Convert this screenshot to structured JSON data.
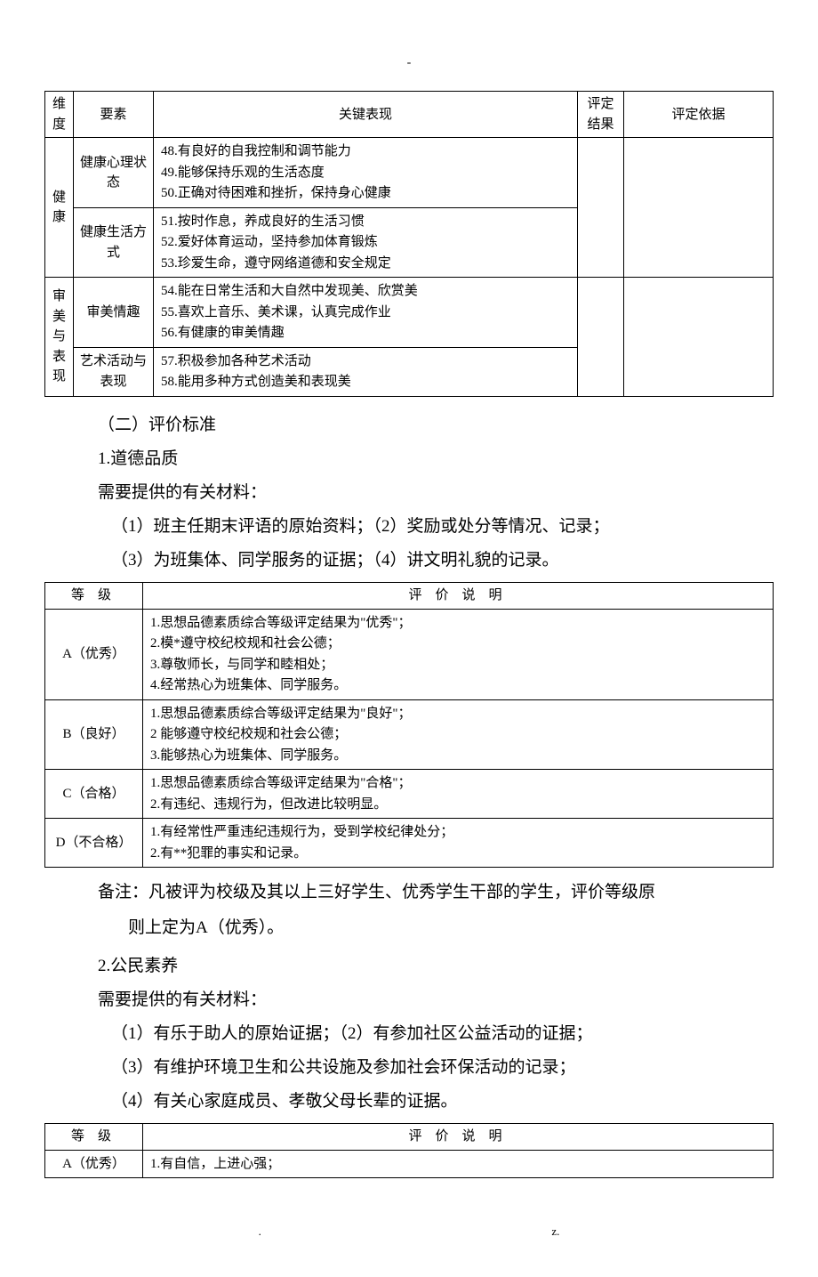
{
  "page_marker_top": "-",
  "footer": {
    "left": ".",
    "right": "z."
  },
  "table1": {
    "headers": {
      "dim": "维度",
      "elem": "要素",
      "perf": "关键表现",
      "res": "评定结果",
      "basis": "评定依据"
    },
    "rows": [
      {
        "dim": "健康",
        "elem": "健康心理状态",
        "perf": [
          "48.有良好的自我控制和调节能力",
          "49.能够保持乐观的生活态度",
          "50.正确对待困难和挫折，保持身心健康"
        ]
      },
      {
        "elem": "健康生活方式",
        "perf": [
          "51.按时作息，养成良好的生活习惯",
          "52.爱好体育运动，坚持参加体育锻炼",
          "53.珍爱生命，遵守网络道德和安全规定"
        ]
      },
      {
        "dim": "审美与表现",
        "elem": "审美情趣",
        "perf": [
          "54.能在日常生活和大自然中发现美、欣赏美",
          "55.喜欢上音乐、美术课，认真完成作业",
          "56.有健康的审美情趣"
        ]
      },
      {
        "elem": "艺术活动与表现",
        "perf": [
          "57.积极参加各种艺术活动",
          "58.能用多种方式创造美和表现美"
        ]
      }
    ]
  },
  "section2": {
    "heading": "（二）评价标准",
    "item1_title": "1.道德品质",
    "materials_label": "需要提供的有关材料：",
    "materials_line1": "（1）班主任期末评语的原始资料；（2）奖励或处分等情况、记录；",
    "materials_line2": "（3）为班集体、同学服务的证据；（4）讲文明礼貌的记录。"
  },
  "table2": {
    "headers": {
      "grade": "等级",
      "desc": "评价说明"
    },
    "rows": [
      {
        "grade": "A（优秀）",
        "desc": [
          "1.思想品德素质综合等级评定结果为\"优秀\"；",
          "2.模*遵守校纪校规和社会公德；",
          "3.尊敬师长，与同学和睦相处；",
          "4.经常热心为班集体、同学服务。"
        ]
      },
      {
        "grade": "B（良好）",
        "desc": [
          "1.思想品德素质综合等级评定结果为\"良好\"；",
          "2 能够遵守校纪校规和社会公德；",
          "3.能够热心为班集体、同学服务。"
        ]
      },
      {
        "grade": "C（合格）",
        "desc": [
          "1.思想品德素质综合等级评定结果为\"合格\"；",
          "2.有违纪、违规行为，但改进比较明显。"
        ]
      },
      {
        "grade": "D（不合格）",
        "desc": [
          "1.有经常性严重违纪违规行为，受到学校纪律处分；",
          "2.有**犯罪的事实和记录。"
        ]
      }
    ]
  },
  "note": {
    "line1": "备注：凡被评为校级及其以上三好学生、优秀学生干部的学生，评价等级原",
    "line2": "则上定为A（优秀）。"
  },
  "section3": {
    "item_title": "2.公民素养",
    "materials_label": "需要提供的有关材料：",
    "line1": "（1）有乐于助人的原始证据；（2）有参加社区公益活动的证据；",
    "line2": "（3）有维护环境卫生和公共设施及参加社会环保活动的记录；",
    "line3": "（4）有关心家庭成员、孝敬父母长辈的证据。"
  },
  "table3": {
    "headers": {
      "grade": "等级",
      "desc": "评价说明"
    },
    "rows": [
      {
        "grade": "A（优秀）",
        "desc": [
          "1.有自信，上进心强；"
        ]
      }
    ]
  }
}
